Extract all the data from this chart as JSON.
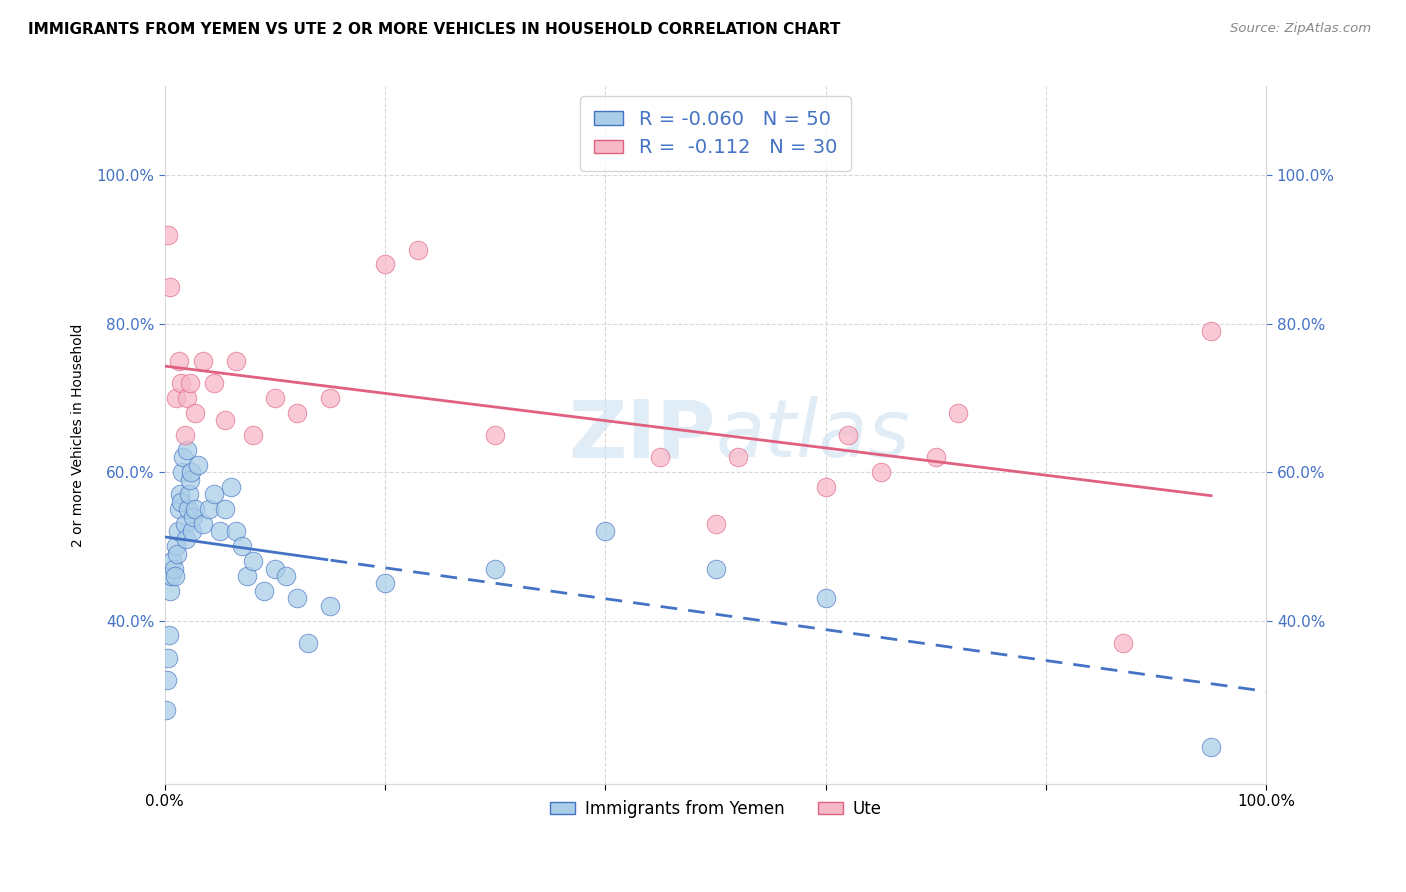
{
  "title": "IMMIGRANTS FROM YEMEN VS UTE 2 OR MORE VEHICLES IN HOUSEHOLD CORRELATION CHART",
  "source": "Source: ZipAtlas.com",
  "ylabel": "2 or more Vehicles in Household",
  "legend_label1": "Immigrants from Yemen",
  "legend_label2": "Ute",
  "R1": -0.06,
  "N1": 50,
  "R2": -0.112,
  "N2": 30,
  "color_blue": "#aacde8",
  "color_pink": "#f7b8c8",
  "line_color_blue": "#4472c4",
  "line_color_pink": "#e06080",
  "blue_points_x": [
    0.1,
    0.2,
    0.3,
    0.4,
    0.5,
    0.6,
    0.7,
    0.8,
    0.9,
    1.0,
    1.1,
    1.2,
    1.3,
    1.4,
    1.5,
    1.6,
    1.7,
    1.8,
    1.9,
    2.0,
    2.1,
    2.2,
    2.3,
    2.4,
    2.5,
    2.6,
    2.7,
    3.0,
    3.5,
    4.0,
    4.5,
    5.0,
    5.5,
    6.0,
    6.5,
    7.0,
    7.5,
    8.0,
    9.0,
    10.0,
    11.0,
    12.0,
    13.0,
    15.0,
    20.0,
    30.0,
    40.0,
    50.0,
    60.0,
    95.0
  ],
  "blue_points_y": [
    28.0,
    32.0,
    35.0,
    38.0,
    44.0,
    46.0,
    48.0,
    47.0,
    46.0,
    50.0,
    49.0,
    52.0,
    55.0,
    57.0,
    56.0,
    60.0,
    62.0,
    53.0,
    51.0,
    63.0,
    55.0,
    57.0,
    59.0,
    60.0,
    52.0,
    54.0,
    55.0,
    61.0,
    53.0,
    55.0,
    57.0,
    52.0,
    55.0,
    58.0,
    52.0,
    50.0,
    46.0,
    48.0,
    44.0,
    47.0,
    46.0,
    43.0,
    37.0,
    42.0,
    45.0,
    47.0,
    52.0,
    47.0,
    43.0,
    23.0
  ],
  "pink_points_x": [
    0.3,
    0.5,
    1.0,
    1.3,
    1.5,
    1.8,
    2.0,
    2.3,
    2.7,
    3.5,
    4.5,
    5.5,
    6.5,
    8.0,
    10.0,
    12.0,
    15.0,
    20.0,
    23.0,
    30.0,
    45.0,
    50.0,
    52.0,
    60.0,
    62.0,
    65.0,
    70.0,
    72.0,
    87.0,
    95.0
  ],
  "pink_points_y": [
    92.0,
    85.0,
    70.0,
    75.0,
    72.0,
    65.0,
    70.0,
    72.0,
    68.0,
    75.0,
    72.0,
    67.0,
    75.0,
    65.0,
    70.0,
    68.0,
    70.0,
    88.0,
    90.0,
    65.0,
    62.0,
    53.0,
    62.0,
    58.0,
    65.0,
    60.0,
    62.0,
    68.0,
    37.0,
    79.0
  ],
  "xlim": [
    0,
    100
  ],
  "ylim": [
    18,
    112
  ],
  "ytick_vals": [
    40,
    60,
    80,
    100
  ],
  "background_color": "#ffffff",
  "grid_color": "#d8d8d8",
  "watermark_color": "#c8dff0",
  "title_fontsize": 11,
  "axis_label_fontsize": 10,
  "tick_fontsize": 11,
  "legend_fontsize": 14
}
